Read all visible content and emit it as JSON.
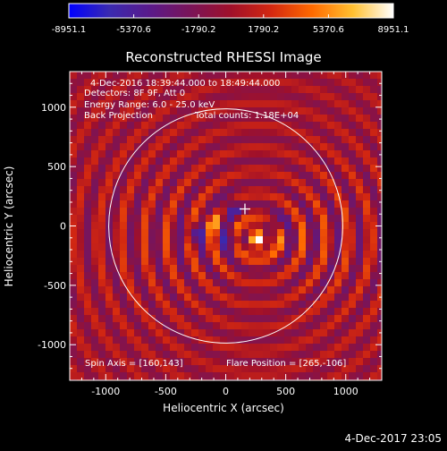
{
  "colorbar": {
    "tick_labels": [
      "-8951.1",
      "-5370.6",
      "-1790.2",
      "1790.2",
      "5370.6",
      "8951.1"
    ],
    "min": -8951.1,
    "max": 8951.1,
    "colormap": [
      "#0000ff",
      "#3a2ab0",
      "#5a1a8a",
      "#7a1458",
      "#a0102a",
      "#d42810",
      "#ff6a00",
      "#ffc030",
      "#ffffff"
    ]
  },
  "chart_data": {
    "type": "heatmap",
    "title": "Reconstructed RHESSI Image",
    "xlabel": "Heliocentric X (arcsec)",
    "ylabel": "Heliocentric Y (arcsec)",
    "xlim": [
      -1300,
      1300
    ],
    "ylim": [
      -1300,
      1300
    ],
    "xticks": [
      -1000,
      -500,
      0,
      500,
      1000
    ],
    "yticks": [
      -1000,
      -500,
      0,
      500,
      1000
    ],
    "x_tick_labels": [
      "-1000",
      "-500",
      "0",
      "500",
      "1000"
    ],
    "y_tick_labels": [
      "-1000",
      "-500",
      "0",
      "500",
      "1000"
    ],
    "value_range": [
      -8951.1,
      8951.1
    ],
    "solar_limb_radius_arcsec": 975,
    "spin_axis": [
      160,
      143
    ],
    "flare_position": [
      265,
      -106
    ],
    "annotations": {
      "time_range": "4-Dec-2016 18:39:44.000 to 18:49:44.000",
      "detectors": "Detectors: 8F 9F, Att 0",
      "energy": "Energy Range: 6.0 - 25.0 keV",
      "method": "Back Projection",
      "counts": "Total counts: 1.18E+04",
      "spin_axis_label": "Spin Axis = [160,143]",
      "flare_position_label": "Flare Position = [265,-106]"
    }
  },
  "timestamp": "4-Dec-2017 23:05"
}
